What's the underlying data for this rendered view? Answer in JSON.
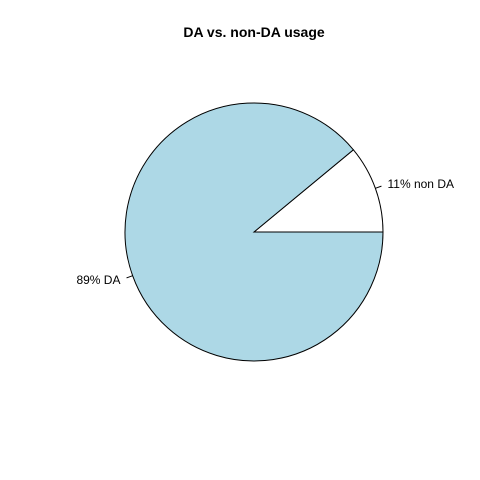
{
  "chart_data": {
    "type": "pie",
    "title": "DA vs. non-DA usage",
    "slices": [
      {
        "label": "11% non DA",
        "value": 11,
        "color": "#ffffff"
      },
      {
        "label": "89% DA",
        "value": 89,
        "color": "#add8e6"
      }
    ],
    "start": "3 o'clock",
    "direction": "counterclockwise"
  }
}
